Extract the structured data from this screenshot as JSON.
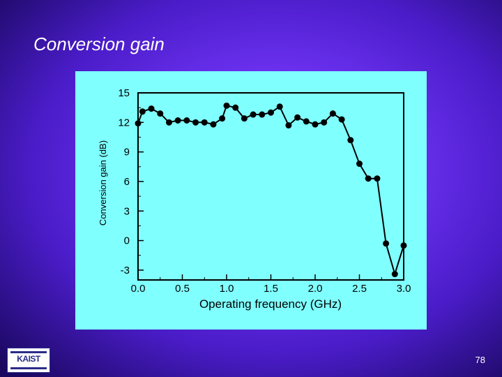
{
  "slide": {
    "title": "Conversion gain",
    "page_number": "78",
    "logo_text": "KAIST"
  },
  "chart_data": {
    "type": "line",
    "title": "",
    "xlabel": "Operating frequency (GHz)",
    "ylabel": "Conversion gain (dB)",
    "xlim": [
      0.0,
      3.0
    ],
    "ylim": [
      -4,
      15
    ],
    "xticks": [
      0.0,
      0.5,
      1.0,
      1.5,
      2.0,
      2.5,
      3.0
    ],
    "xtick_labels": [
      "0.0",
      "0.5",
      "1.0",
      "1.5",
      "2.0",
      "2.5",
      "3.0"
    ],
    "yticks": [
      -3,
      0,
      3,
      6,
      9,
      12,
      15
    ],
    "ytick_labels": [
      "-3",
      "0",
      "3",
      "6",
      "9",
      "12",
      "15"
    ],
    "grid": false,
    "colors": {
      "panel_background": "#80ffff",
      "series": "#000000"
    },
    "series": [
      {
        "name": "",
        "x": [
          0.0,
          0.05,
          0.15,
          0.25,
          0.35,
          0.45,
          0.55,
          0.65,
          0.75,
          0.85,
          0.95,
          1.0,
          1.1,
          1.2,
          1.3,
          1.4,
          1.5,
          1.6,
          1.7,
          1.8,
          1.9,
          2.0,
          2.1,
          2.2,
          2.3,
          2.4,
          2.5,
          2.6,
          2.7,
          2.8,
          2.9,
          3.0
        ],
        "y": [
          11.9,
          13.1,
          13.4,
          12.9,
          12.0,
          12.2,
          12.2,
          12.0,
          12.0,
          11.8,
          12.4,
          13.7,
          13.5,
          12.4,
          12.8,
          12.8,
          13.0,
          13.6,
          11.7,
          12.5,
          12.1,
          11.8,
          12.0,
          12.9,
          12.3,
          10.2,
          7.8,
          6.3,
          6.3,
          -0.3,
          -3.4,
          -0.5
        ]
      }
    ]
  }
}
